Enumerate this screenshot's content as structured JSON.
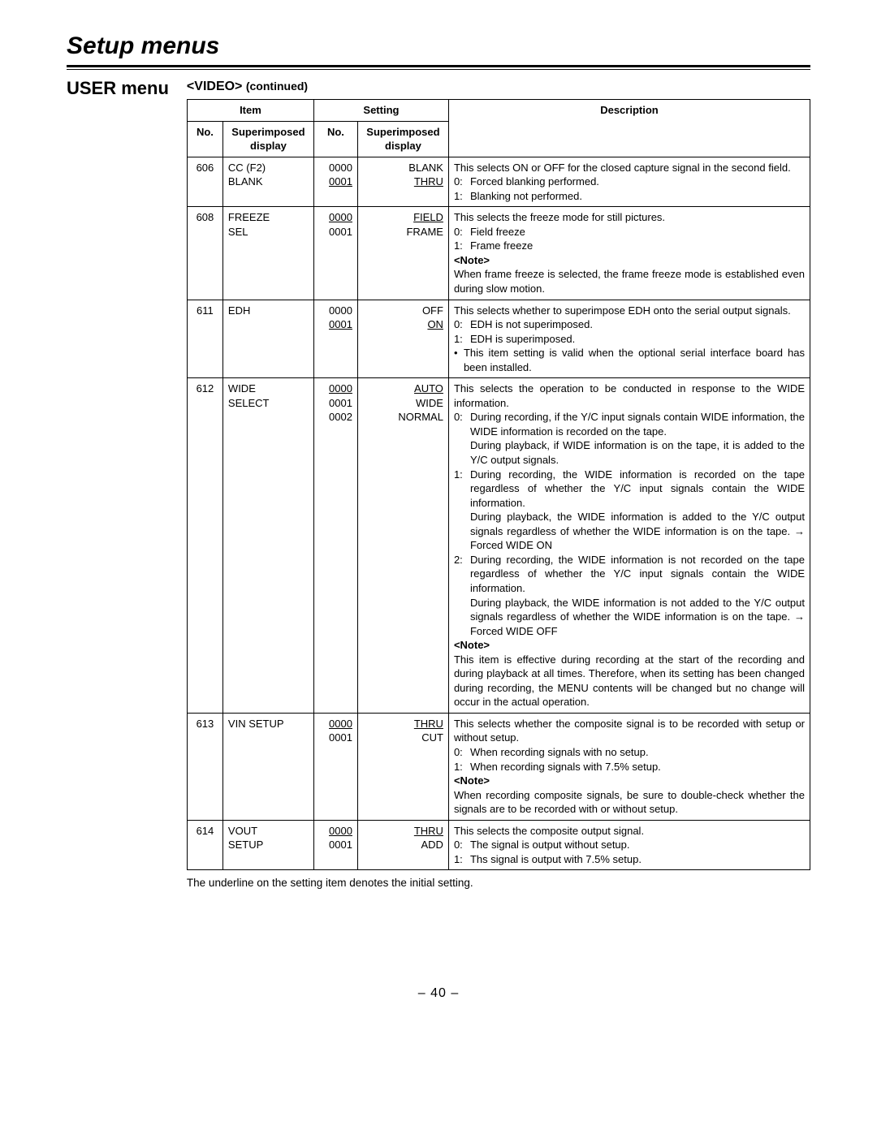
{
  "page_title": "Setup menus",
  "section_title": "USER menu",
  "sub_heading_main": "<VIDEO>",
  "sub_heading_cont": "(continued)",
  "columns": {
    "item": "Item",
    "setting": "Setting",
    "description": "Description",
    "no": "No.",
    "superimposed": "Superimposed",
    "display": "display"
  },
  "rows": {
    "r606": {
      "no": "606",
      "item_l1": "CC (F2)",
      "item_l2": "BLANK",
      "sn_l1": "0000",
      "sn_l2": "0001",
      "sv_l1": "BLANK",
      "sv_l2": "THRU",
      "intro": "This selects ON or OFF for the closed capture signal in the second field.",
      "d0": "Forced blanking performed.",
      "d1": "Blanking not performed."
    },
    "r608": {
      "no": "608",
      "item_l1": "FREEZE",
      "item_l2": "SEL",
      "sn_l1": "0000",
      "sn_l2": "0001",
      "sv_l1": "FIELD",
      "sv_l2": "FRAME",
      "intro": "This selects the freeze mode for still pictures.",
      "d0": "Field freeze",
      "d1": "Frame freeze",
      "note_label": "<Note>",
      "note": "When frame freeze is selected, the frame freeze mode is established even during slow motion."
    },
    "r611": {
      "no": "611",
      "item_l1": "EDH",
      "sn_l1": "0000",
      "sn_l2": "0001",
      "sv_l1": "OFF",
      "sv_l2": "ON",
      "intro": "This selects whether to superimpose EDH onto the serial output signals.",
      "d0": "EDH is not superimposed.",
      "d1": "EDH is superimposed.",
      "bullet": "This item setting is valid when the optional serial interface board has been installed."
    },
    "r612": {
      "no": "612",
      "item_l1": "WIDE",
      "item_l2": "SELECT",
      "sn_l1": "0000",
      "sn_l2": "0001",
      "sn_l3": "0002",
      "sv_l1": "AUTO",
      "sv_l2": "WIDE",
      "sv_l3": "NORMAL",
      "intro": "This selects the operation to be conducted in response to the WIDE information.",
      "d0a": "During recording, if the Y/C input signals contain WIDE information, the WIDE information is recorded on the tape.",
      "d0b": "During playback, if WIDE information is on the tape, it is added to the Y/C output signals.",
      "d1a": "During recording, the WIDE information is recorded on the tape regardless of whether the Y/C input signals contain the WIDE information.",
      "d1b": "During playback, the WIDE information is added to the Y/C output signals regardless of whether the WIDE information is on the tape. → Forced WIDE ON",
      "d2a": "During recording, the WIDE information is not recorded on the tape regardless of whether the Y/C input signals contain the WIDE information.",
      "d2b": "During playback, the WIDE information is not added to the Y/C output signals regardless of whether the WIDE information is on the tape. → Forced WIDE OFF",
      "note_label": "<Note>",
      "note": "This item is effective during recording at the start of the recording and during playback at all times. Therefore, when its setting has been changed during recording, the MENU contents will be changed but no change will occur in the actual operation."
    },
    "r613": {
      "no": "613",
      "item_l1": "VIN SETUP",
      "sn_l1": "0000",
      "sn_l2": "0001",
      "sv_l1": "THRU",
      "sv_l2": "CUT",
      "intro": "This selects whether the composite signal is to be recorded with setup or without setup.",
      "d0": "When recording signals with no setup.",
      "d1": "When recording signals with 7.5% setup.",
      "note_label": "<Note>",
      "note": "When recording composite signals, be sure to double-check whether the signals are to be recorded with or without setup."
    },
    "r614": {
      "no": "614",
      "item_l1": "VOUT",
      "item_l2": "SETUP",
      "sn_l1": "0000",
      "sn_l2": "0001",
      "sv_l1": "THRU",
      "sv_l2": "ADD",
      "intro": "This selects the composite output signal.",
      "d0": "The signal is output without setup.",
      "d1": "Ths signal is output with 7.5% setup."
    }
  },
  "footnote": "The underline on the setting item denotes the initial setting.",
  "page_number": "– 40 –"
}
